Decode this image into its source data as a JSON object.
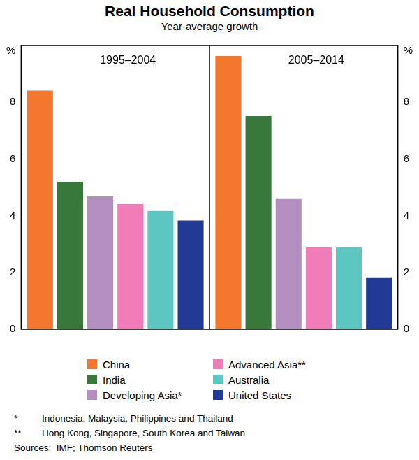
{
  "chart_data": {
    "type": "bar",
    "title": "Real Household Consumption",
    "subtitle": "Year-average growth",
    "y_label": "%",
    "categories": [
      "1995–2004",
      "2005–2014"
    ],
    "series": [
      {
        "name": "China",
        "color": "#f4772e",
        "values": [
          8.41,
          9.63
        ]
      },
      {
        "name": "India",
        "color": "#38783a",
        "values": [
          5.2,
          7.51
        ]
      },
      {
        "name": "Developing Asia*",
        "color": "#b28fc0",
        "values": [
          4.68,
          4.61
        ]
      },
      {
        "name": "Advanced Asia**",
        "color": "#f27cb8",
        "values": [
          4.41,
          2.88
        ]
      },
      {
        "name": "Australia",
        "color": "#5ec6c0",
        "values": [
          4.17,
          2.88
        ]
      },
      {
        "name": "United States",
        "color": "#233a94",
        "values": [
          3.83,
          1.83
        ]
      }
    ],
    "ylim": [
      0,
      10
    ],
    "yticks": [
      0,
      2,
      4,
      6,
      8
    ],
    "grid": false,
    "legend": "bottom",
    "notes": [
      {
        "mark": "*",
        "text": "Indonesia, Malaysia, Philippines and Thailand"
      },
      {
        "mark": "**",
        "text": "Hong Kong, Singapore, South Korea and Taiwan"
      }
    ],
    "source": "Sources:  IMF; Thomson Reuters"
  }
}
